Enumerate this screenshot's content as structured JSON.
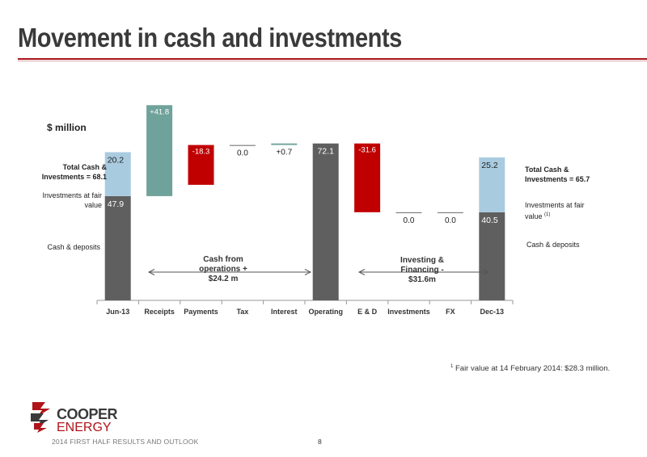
{
  "page": {
    "title": "Movement in cash and investments",
    "footer_text": "2014 FIRST HALF RESULTS AND OUTLOOK",
    "page_number": "8",
    "logo_text_1": "COOPER",
    "logo_text_2": "ENERGY",
    "footnote_marker": "1",
    "footnote": " Fair value at 14 February 2014: $28.3 million."
  },
  "annotations": {
    "unit": "$ million",
    "left_total": "Total Cash & Investments = 68.1",
    "left_fair_value": "Investments at fair value",
    "left_cash": "Cash & deposits",
    "right_total": "Total Cash & Investments = 65.7",
    "right_fair_value": "Investments at fair value",
    "right_fair_value_marker": "(1)",
    "right_cash": "Cash & deposits",
    "ops_bracket": "Cash from operations + $24.2 m",
    "inv_bracket": "Investing & Financing - $31.6m"
  },
  "colors": {
    "dark_grey": "#5f5f5f",
    "light_blue": "#a9cbe0",
    "teal": "#6fa29a",
    "red": "#c00000",
    "title_rule": "#a7151b"
  },
  "chart_data": {
    "type": "bar",
    "subtype": "waterfall",
    "categories": [
      "Jun-13",
      "Receipts",
      "Payments",
      "Tax",
      "Interest",
      "Operating",
      "E & D",
      "Investments",
      "FX",
      "Dec-13"
    ],
    "bars": [
      {
        "category": "Jun-13",
        "kind": "stacked",
        "segments": [
          {
            "name": "Cash & deposits",
            "value": 47.9,
            "label": "47.9",
            "color": "#5f5f5f"
          },
          {
            "name": "Investments at fair value",
            "value": 20.2,
            "label": "20.2",
            "color": "#a9cbe0"
          }
        ]
      },
      {
        "category": "Receipts",
        "kind": "floating",
        "base": 47.9,
        "value": 41.8,
        "label": "+41.8",
        "color": "#6fa29a"
      },
      {
        "category": "Payments",
        "kind": "floating",
        "base": 71.4,
        "value": -18.3,
        "label": "-18.3",
        "color": "#c00000"
      },
      {
        "category": "Tax",
        "kind": "floating",
        "base": 71.4,
        "value": 0.0,
        "label": "0.0",
        "color": "#7f7f7f"
      },
      {
        "category": "Interest",
        "kind": "floating",
        "base": 71.4,
        "value": 0.7,
        "label": "+0.7",
        "color": "#6fa29a"
      },
      {
        "category": "Operating",
        "kind": "total",
        "value": 72.1,
        "label": "72.1",
        "color": "#5f5f5f"
      },
      {
        "category": "E & D",
        "kind": "floating",
        "base": 72.1,
        "value": -31.6,
        "label": "-31.6",
        "color": "#c00000"
      },
      {
        "category": "Investments",
        "kind": "floating",
        "base": 40.5,
        "value": 0.0,
        "label": "0.0",
        "color": "#7f7f7f"
      },
      {
        "category": "FX",
        "kind": "floating",
        "base": 40.5,
        "value": 0.0,
        "label": "0.0",
        "color": "#7f7f7f"
      },
      {
        "category": "Dec-13",
        "kind": "stacked",
        "segments": [
          {
            "name": "Cash & deposits",
            "value": 40.5,
            "label": "40.5",
            "color": "#5f5f5f"
          },
          {
            "name": "Investments at fair value",
            "value": 25.2,
            "label": "25.2",
            "color": "#a9cbe0"
          }
        ]
      }
    ],
    "ylim": [
      0,
      90
    ],
    "grid": false,
    "xlabel": "",
    "ylabel": "$ million"
  }
}
